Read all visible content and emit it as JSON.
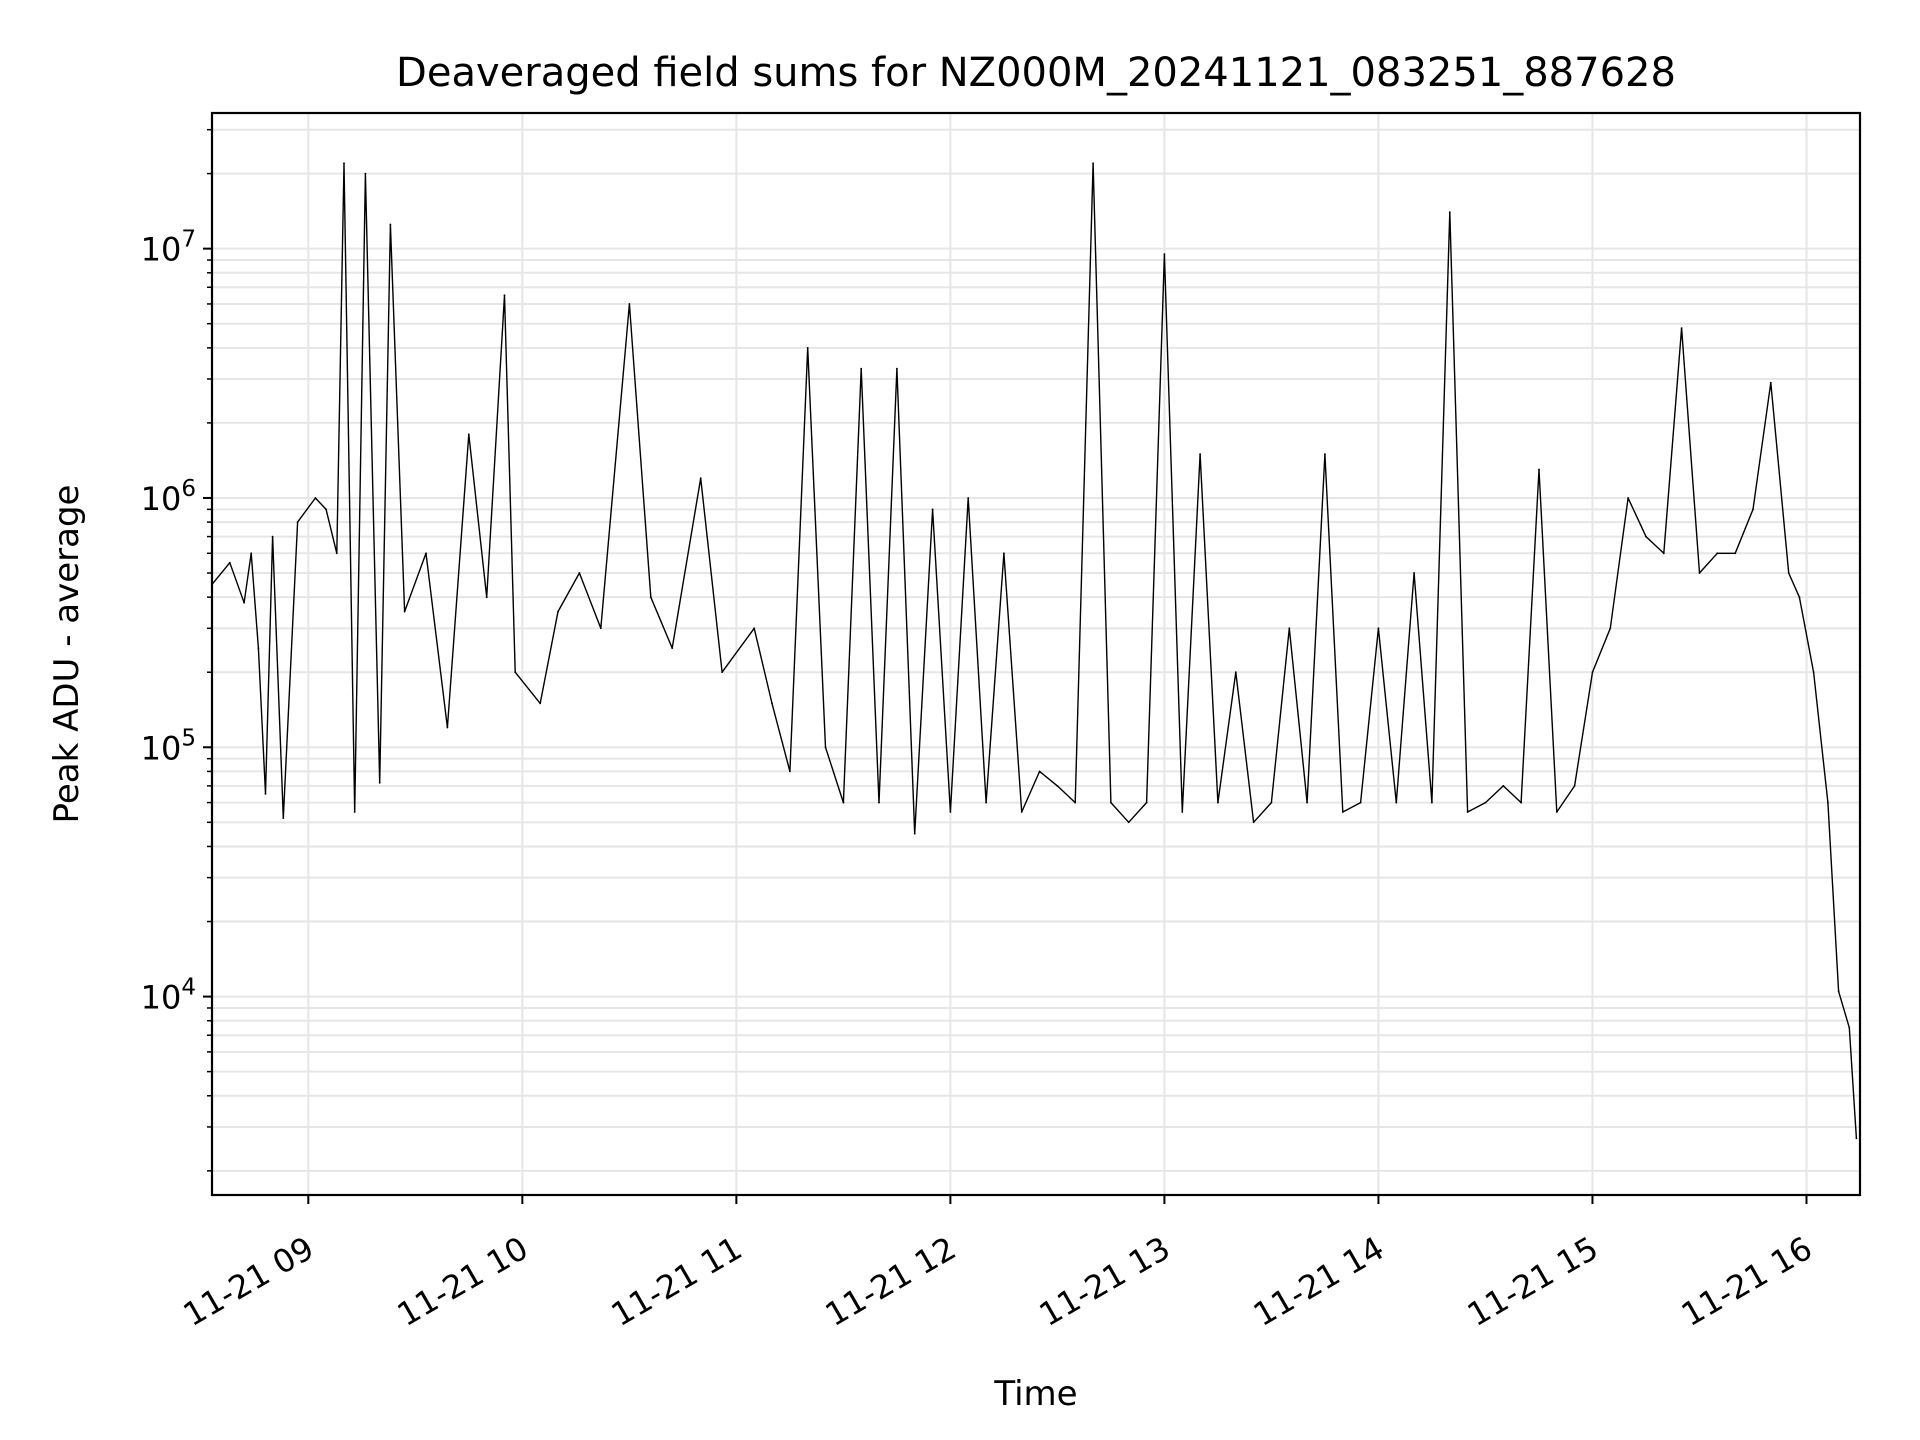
{
  "chart_data": {
    "type": "line",
    "title": "Deaveraged field sums for NZ000M_20241121_083251_887628",
    "xlabel": "Time",
    "ylabel": "Peak ADU - average",
    "yscale": "log",
    "ylim": [
      1600,
      35000000
    ],
    "xlim": [
      "2024-11-21 08:33",
      "2024-11-21 16:15"
    ],
    "x_ticks": [
      "11-21 09",
      "11-21 10",
      "11-21 11",
      "11-21 12",
      "11-21 13",
      "11-21 14",
      "11-21 15",
      "11-21 16"
    ],
    "y_ticks": [
      {
        "base": "10",
        "exp": "4",
        "value": 10000
      },
      {
        "base": "10",
        "exp": "5",
        "value": 100000
      },
      {
        "base": "10",
        "exp": "6",
        "value": 1000000
      },
      {
        "base": "10",
        "exp": "7",
        "value": 10000000
      }
    ],
    "grid": true,
    "line_color": "#000000",
    "grid_color": "#e6e6e6",
    "series": [
      {
        "x": [
          "2024-11-21 08:33",
          "2024-11-21 08:38",
          "2024-11-21 08:42",
          "2024-11-21 08:44",
          "2024-11-21 08:46",
          "2024-11-21 08:48",
          "2024-11-21 08:50",
          "2024-11-21 08:53",
          "2024-11-21 08:57",
          "2024-11-21 09:02",
          "2024-11-21 09:05",
          "2024-11-21 09:08",
          "2024-11-21 09:10",
          "2024-11-21 09:13",
          "2024-11-21 09:16",
          "2024-11-21 09:20",
          "2024-11-21 09:23",
          "2024-11-21 09:27",
          "2024-11-21 09:33",
          "2024-11-21 09:39",
          "2024-11-21 09:45",
          "2024-11-21 09:50",
          "2024-11-21 09:55",
          "2024-11-21 09:58",
          "2024-11-21 10:05",
          "2024-11-21 10:10",
          "2024-11-21 10:16",
          "2024-11-21 10:22",
          "2024-11-21 10:30",
          "2024-11-21 10:36",
          "2024-11-21 10:42",
          "2024-11-21 10:50",
          "2024-11-21 10:56",
          "2024-11-21 11:05",
          "2024-11-21 11:10",
          "2024-11-21 11:15",
          "2024-11-21 11:20",
          "2024-11-21 11:25",
          "2024-11-21 11:30",
          "2024-11-21 11:35",
          "2024-11-21 11:40",
          "2024-11-21 11:45",
          "2024-11-21 11:50",
          "2024-11-21 11:55",
          "2024-11-21 12:00",
          "2024-11-21 12:05",
          "2024-11-21 12:10",
          "2024-11-21 12:15",
          "2024-11-21 12:20",
          "2024-11-21 12:25",
          "2024-11-21 12:30",
          "2024-11-21 12:35",
          "2024-11-21 12:40",
          "2024-11-21 12:45",
          "2024-11-21 12:50",
          "2024-11-21 12:55",
          "2024-11-21 13:00",
          "2024-11-21 13:05",
          "2024-11-21 13:10",
          "2024-11-21 13:15",
          "2024-11-21 13:20",
          "2024-11-21 13:25",
          "2024-11-21 13:30",
          "2024-11-21 13:35",
          "2024-11-21 13:40",
          "2024-11-21 13:45",
          "2024-11-21 13:50",
          "2024-11-21 13:55",
          "2024-11-21 14:00",
          "2024-11-21 14:05",
          "2024-11-21 14:10",
          "2024-11-21 14:15",
          "2024-11-21 14:20",
          "2024-11-21 14:25",
          "2024-11-21 14:30",
          "2024-11-21 14:35",
          "2024-11-21 14:40",
          "2024-11-21 14:45",
          "2024-11-21 14:50",
          "2024-11-21 14:55",
          "2024-11-21 15:00",
          "2024-11-21 15:05",
          "2024-11-21 15:10",
          "2024-11-21 15:15",
          "2024-11-21 15:20",
          "2024-11-21 15:25",
          "2024-11-21 15:30",
          "2024-11-21 15:35",
          "2024-11-21 15:40",
          "2024-11-21 15:45",
          "2024-11-21 15:50",
          "2024-11-21 15:55",
          "2024-11-21 15:58",
          "2024-11-21 16:02",
          "2024-11-21 16:06",
          "2024-11-21 16:09",
          "2024-11-21 16:12",
          "2024-11-21 16:14"
        ],
        "y": [
          450000,
          550000,
          380000,
          600000,
          250000,
          65000,
          700000,
          52000,
          800000,
          1000000,
          900000,
          600000,
          22000000,
          55000,
          20000000,
          72000,
          12500000,
          350000,
          600000,
          120000,
          1800000,
          400000,
          6500000,
          200000,
          150000,
          350000,
          500000,
          300000,
          6000000,
          400000,
          250000,
          1200000,
          200000,
          300000,
          150000,
          80000,
          4000000,
          100000,
          60000,
          3300000,
          60000,
          3300000,
          45000,
          900000,
          55000,
          1000000,
          60000,
          600000,
          55000,
          80000,
          70000,
          60000,
          22000000,
          60000,
          50000,
          60000,
          9500000,
          55000,
          1500000,
          60000,
          200000,
          50000,
          60000,
          300000,
          60000,
          1500000,
          55000,
          60000,
          300000,
          60000,
          500000,
          60000,
          14000000,
          55000,
          60000,
          70000,
          60000,
          1300000,
          55000,
          70000,
          200000,
          300000,
          1000000,
          700000,
          600000,
          4800000,
          500000,
          600000,
          600000,
          900000,
          2900000,
          500000,
          400000,
          200000,
          60000,
          10500,
          7500,
          2700
        ]
      }
    ]
  }
}
